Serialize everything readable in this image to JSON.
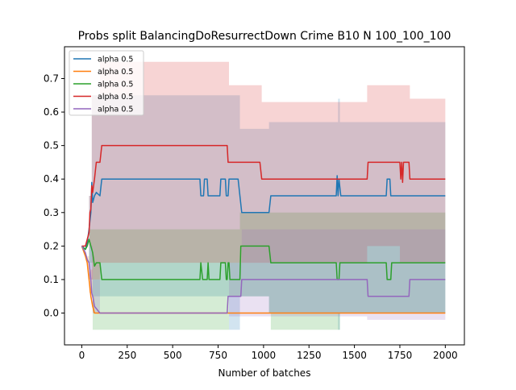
{
  "chart_data": {
    "type": "line",
    "title": "Probs split BalancingDoResurrectDown Crime B10 N 100_100_100",
    "xlabel": "Number of batches",
    "ylabel": "",
    "xlim": [
      -95,
      2105
    ],
    "ylim": [
      -0.095,
      0.795
    ],
    "xticks": [
      0,
      250,
      500,
      750,
      1000,
      1250,
      1500,
      1750,
      2000
    ],
    "yticks": [
      0.0,
      0.1,
      0.2,
      0.3,
      0.4,
      0.5,
      0.6,
      0.7
    ],
    "grid": false,
    "legend_position": "top-left",
    "series": [
      {
        "name": "alpha 0.5",
        "color": "#1f77b4",
        "points": [
          [
            0,
            0.2
          ],
          [
            20,
            0.19
          ],
          [
            30,
            0.21
          ],
          [
            40,
            0.25
          ],
          [
            50,
            0.3
          ],
          [
            55,
            0.39
          ],
          [
            60,
            0.33
          ],
          [
            70,
            0.35
          ],
          [
            80,
            0.36
          ],
          [
            100,
            0.35
          ],
          [
            110,
            0.4
          ],
          [
            650,
            0.4
          ],
          [
            655,
            0.35
          ],
          [
            670,
            0.35
          ],
          [
            675,
            0.4
          ],
          [
            690,
            0.4
          ],
          [
            695,
            0.35
          ],
          [
            760,
            0.35
          ],
          [
            765,
            0.4
          ],
          [
            790,
            0.4
          ],
          [
            795,
            0.35
          ],
          [
            805,
            0.35
          ],
          [
            810,
            0.4
          ],
          [
            860,
            0.4
          ],
          [
            870,
            0.35
          ],
          [
            880,
            0.3
          ],
          [
            1030,
            0.3
          ],
          [
            1040,
            0.35
          ],
          [
            1400,
            0.35
          ],
          [
            1405,
            0.41
          ],
          [
            1410,
            0.35
          ],
          [
            1415,
            0.4
          ],
          [
            1425,
            0.35
          ],
          [
            1675,
            0.35
          ],
          [
            1680,
            0.4
          ],
          [
            1695,
            0.4
          ],
          [
            1700,
            0.35
          ],
          [
            2000,
            0.35
          ]
        ],
        "band": [
          [
            0,
            0.2,
            0.2
          ],
          [
            40,
            0.1,
            0.35
          ],
          [
            55,
            0.05,
            0.65
          ],
          [
            800,
            0.05,
            0.65
          ],
          [
            810,
            -0.05,
            0.65
          ],
          [
            870,
            0.05,
            0.55
          ],
          [
            1030,
            0.0,
            0.57
          ],
          [
            1400,
            0.0,
            0.57
          ],
          [
            1410,
            -0.05,
            0.64
          ],
          [
            1420,
            0.0,
            0.57
          ],
          [
            2000,
            0.0,
            0.57
          ]
        ]
      },
      {
        "name": "alpha 0.5",
        "color": "#ff7f0e",
        "points": [
          [
            0,
            0.2
          ],
          [
            20,
            0.17
          ],
          [
            30,
            0.15
          ],
          [
            40,
            0.1
          ],
          [
            50,
            0.05
          ],
          [
            60,
            0.02
          ],
          [
            70,
            0.0
          ],
          [
            2000,
            0.0
          ]
        ],
        "band": [
          [
            0,
            0.2,
            0.2
          ],
          [
            30,
            0.13,
            0.17
          ],
          [
            40,
            0.06,
            0.13
          ],
          [
            60,
            0.0,
            0.05
          ],
          [
            70,
            0.0,
            0.0
          ],
          [
            2000,
            0.0,
            0.0
          ]
        ]
      },
      {
        "name": "alpha 0.5",
        "color": "#2ca02c",
        "points": [
          [
            0,
            0.2
          ],
          [
            20,
            0.19
          ],
          [
            30,
            0.2
          ],
          [
            40,
            0.22
          ],
          [
            50,
            0.2
          ],
          [
            60,
            0.18
          ],
          [
            70,
            0.14
          ],
          [
            80,
            0.15
          ],
          [
            100,
            0.15
          ],
          [
            110,
            0.1
          ],
          [
            650,
            0.1
          ],
          [
            655,
            0.15
          ],
          [
            665,
            0.1
          ],
          [
            690,
            0.1
          ],
          [
            695,
            0.15
          ],
          [
            700,
            0.1
          ],
          [
            760,
            0.1
          ],
          [
            765,
            0.15
          ],
          [
            790,
            0.15
          ],
          [
            795,
            0.1
          ],
          [
            800,
            0.1
          ],
          [
            805,
            0.15
          ],
          [
            810,
            0.15
          ],
          [
            815,
            0.1
          ],
          [
            870,
            0.1
          ],
          [
            875,
            0.2
          ],
          [
            1030,
            0.2
          ],
          [
            1040,
            0.15
          ],
          [
            1400,
            0.15
          ],
          [
            1405,
            0.1
          ],
          [
            1415,
            0.1
          ],
          [
            1420,
            0.15
          ],
          [
            1675,
            0.15
          ],
          [
            1680,
            0.1
          ],
          [
            1700,
            0.1
          ],
          [
            1705,
            0.15
          ],
          [
            2000,
            0.15
          ]
        ],
        "band": [
          [
            0,
            0.2,
            0.2
          ],
          [
            40,
            0.15,
            0.25
          ],
          [
            60,
            -0.05,
            0.25
          ],
          [
            800,
            -0.05,
            0.25
          ],
          [
            810,
            0.05,
            0.25
          ],
          [
            870,
            0.05,
            0.3
          ],
          [
            1030,
            0.0,
            0.3
          ],
          [
            1040,
            -0.05,
            0.3
          ],
          [
            1400,
            -0.05,
            0.3
          ],
          [
            1420,
            0.0,
            0.3
          ],
          [
            2000,
            0.0,
            0.3
          ]
        ]
      },
      {
        "name": "alpha 0.5",
        "color": "#d62728",
        "points": [
          [
            0,
            0.2
          ],
          [
            20,
            0.2
          ],
          [
            30,
            0.22
          ],
          [
            40,
            0.24
          ],
          [
            45,
            0.3
          ],
          [
            50,
            0.31
          ],
          [
            55,
            0.38
          ],
          [
            60,
            0.36
          ],
          [
            70,
            0.4
          ],
          [
            80,
            0.45
          ],
          [
            100,
            0.45
          ],
          [
            110,
            0.5
          ],
          [
            800,
            0.5
          ],
          [
            805,
            0.45
          ],
          [
            980,
            0.45
          ],
          [
            990,
            0.4
          ],
          [
            1570,
            0.4
          ],
          [
            1575,
            0.45
          ],
          [
            1750,
            0.45
          ],
          [
            1755,
            0.4
          ],
          [
            1760,
            0.45
          ],
          [
            1765,
            0.39
          ],
          [
            1770,
            0.45
          ],
          [
            1800,
            0.45
          ],
          [
            1805,
            0.4
          ],
          [
            2000,
            0.4
          ]
        ],
        "band": [
          [
            0,
            0.2,
            0.2
          ],
          [
            40,
            0.2,
            0.35
          ],
          [
            55,
            0.1,
            0.65
          ],
          [
            100,
            0.15,
            0.75
          ],
          [
            800,
            0.15,
            0.75
          ],
          [
            810,
            0.15,
            0.68
          ],
          [
            990,
            0.15,
            0.63
          ],
          [
            1570,
            0.2,
            0.68
          ],
          [
            1750,
            0.15,
            0.68
          ],
          [
            1805,
            0.15,
            0.64
          ],
          [
            2000,
            0.15,
            0.64
          ]
        ]
      },
      {
        "name": "alpha 0.5",
        "color": "#9467bd",
        "points": [
          [
            0,
            0.2
          ],
          [
            20,
            0.18
          ],
          [
            30,
            0.16
          ],
          [
            40,
            0.15
          ],
          [
            50,
            0.1
          ],
          [
            55,
            0.06
          ],
          [
            60,
            0.05
          ],
          [
            70,
            0.02
          ],
          [
            100,
            0.0
          ],
          [
            800,
            0.0
          ],
          [
            805,
            0.05
          ],
          [
            875,
            0.05
          ],
          [
            880,
            0.1
          ],
          [
            1570,
            0.1
          ],
          [
            1575,
            0.05
          ],
          [
            1800,
            0.05
          ],
          [
            1805,
            0.1
          ],
          [
            2000,
            0.1
          ]
        ],
        "band": [
          [
            0,
            0.2,
            0.2
          ],
          [
            40,
            0.1,
            0.2
          ],
          [
            60,
            0.0,
            0.1
          ],
          [
            100,
            0.0,
            0.0
          ],
          [
            800,
            0.0,
            0.0
          ],
          [
            810,
            -0.01,
            0.15
          ],
          [
            880,
            -0.01,
            0.25
          ],
          [
            1570,
            -0.02,
            0.25
          ],
          [
            2000,
            -0.02,
            0.25
          ]
        ]
      }
    ]
  }
}
